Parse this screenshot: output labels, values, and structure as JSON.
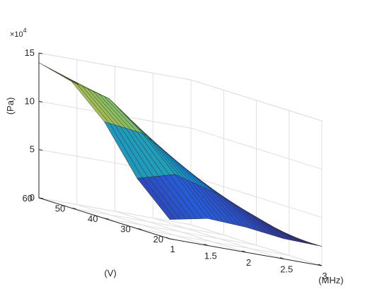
{
  "chart_data": {
    "type": "surface",
    "title": "",
    "xlabel": "(MHz)",
    "ylabel": "(V)",
    "zlabel": "(Pa)",
    "z_exponent_label": "×10",
    "z_exponent_power": "4",
    "xlim": [
      1,
      3
    ],
    "ylim": [
      20,
      60
    ],
    "zlim": [
      0,
      150000
    ],
    "x_ticks": [
      1,
      1.5,
      2,
      2.5,
      3
    ],
    "x_tick_labels": [
      "1",
      "1.5",
      "2",
      "2.5",
      "3"
    ],
    "y_ticks": [
      20,
      30,
      40,
      50,
      60
    ],
    "y_tick_labels": [
      "20",
      "30",
      "40",
      "50",
      "60"
    ],
    "z_ticks": [
      0,
      50000,
      100000,
      150000
    ],
    "z_tick_labels": [
      "0",
      "5",
      "10",
      "15"
    ],
    "x": [
      1.0,
      1.5,
      2.0,
      2.5,
      3.0
    ],
    "y": [
      20,
      30,
      40,
      50,
      60
    ],
    "z": [
      [
        20000,
        28000,
        26000,
        21000,
        20000
      ],
      [
        52000,
        63000,
        52000,
        36000,
        20000
      ],
      [
        100000,
        95000,
        70000,
        45000,
        21000
      ],
      [
        131000,
        120000,
        88000,
        55000,
        22000
      ],
      [
        140000,
        126000,
        92000,
        58000,
        23000
      ]
    ],
    "colormap": "parula",
    "grid": true
  }
}
